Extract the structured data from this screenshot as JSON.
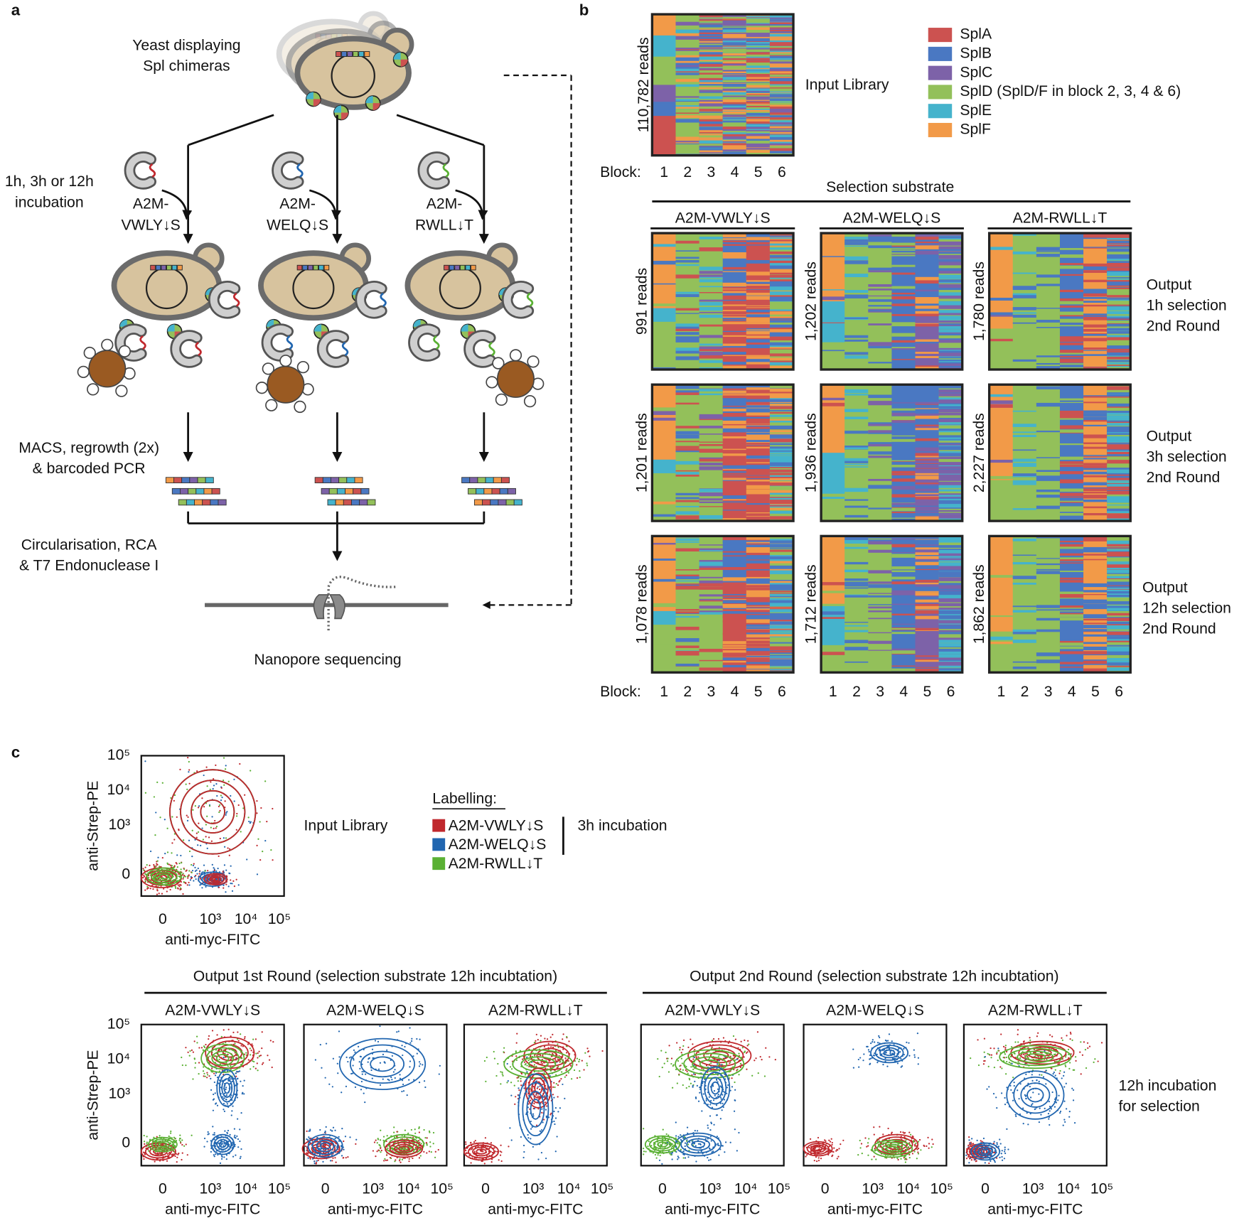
{
  "panel_a": {
    "label": "a",
    "yeast_label": [
      "Yeast displaying",
      "Spl chimeras"
    ],
    "incubation": [
      "1h, 3h or 12h",
      "incubation"
    ],
    "substrates": [
      [
        "A2M-",
        "VWLY↓S"
      ],
      [
        "A2M-",
        "WELQ↓S"
      ],
      [
        "A2M-",
        "RWLL↓T"
      ]
    ],
    "macs": [
      "MACS, regrowth (2x)",
      "& barcoded PCR"
    ],
    "circularisation": [
      "Circularisation, RCA",
      "& T7 Endonuclease I"
    ],
    "sequencing": "Nanopore sequencing"
  },
  "panel_b": {
    "label": "b",
    "legend": [
      {
        "name": "SplA",
        "color": "#cc5250"
      },
      {
        "name": "SplB",
        "color": "#4a78c2"
      },
      {
        "name": "SplC",
        "color": "#7d62a8"
      },
      {
        "name": "SplD (SplD/F in block 2, 3, 4 & 6)",
        "color": "#93c05a"
      },
      {
        "name": "SplE",
        "color": "#45b3cc"
      },
      {
        "name": "SplF",
        "color": "#f29a48"
      }
    ],
    "input_reads": "110,782 reads",
    "input_label": "Input Library",
    "block_label": "Block:",
    "blocks": [
      "1",
      "2",
      "3",
      "4",
      "5",
      "6"
    ],
    "selection_substrate": "Selection substrate",
    "substrates": [
      "A2M-VWLY↓S",
      "A2M-WELQ↓S",
      "A2M-RWLL↓T"
    ],
    "rows": [
      {
        "label": [
          "Output",
          "1h selection",
          "2nd Round"
        ],
        "reads": [
          "991 reads",
          "1,202 reads",
          "1,780 reads"
        ]
      },
      {
        "label": [
          "Output",
          "3h selection",
          "2nd Round"
        ],
        "reads": [
          "1,201 reads",
          "1,936 reads",
          "2,227 reads"
        ]
      },
      {
        "label": [
          "Output",
          "12h selection",
          "2nd Round"
        ],
        "reads": [
          "1,078 reads",
          "1,712 reads",
          "1,862 reads"
        ]
      }
    ]
  },
  "panel_c": {
    "label": "c",
    "y_axis": "anti-Strep-PE",
    "x_axis": "anti-myc-FITC",
    "ticks": [
      "0",
      "10³",
      "10⁴",
      "10⁵"
    ],
    "input_label": "Input Library",
    "labelling_title": "Labelling:",
    "labelling": [
      {
        "name": "A2M-VWLY↓S",
        "color": "#c0282d"
      },
      {
        "name": "A2M-WELQ↓S",
        "color": "#2166b0"
      },
      {
        "name": "A2M-RWLL↓T",
        "color": "#5ab033"
      }
    ],
    "labelling_incubation": "3h incubation",
    "round1": "Output 1st Round (selection substrate 12h incubtation)",
    "round2": "Output 2nd Round (selection substrate 12h incubtation)",
    "substrates": [
      "A2M-VWLY↓S",
      "A2M-WELQ↓S",
      "A2M-RWLL↓T"
    ],
    "side_label": [
      "12h incubation",
      "for selection"
    ]
  }
}
